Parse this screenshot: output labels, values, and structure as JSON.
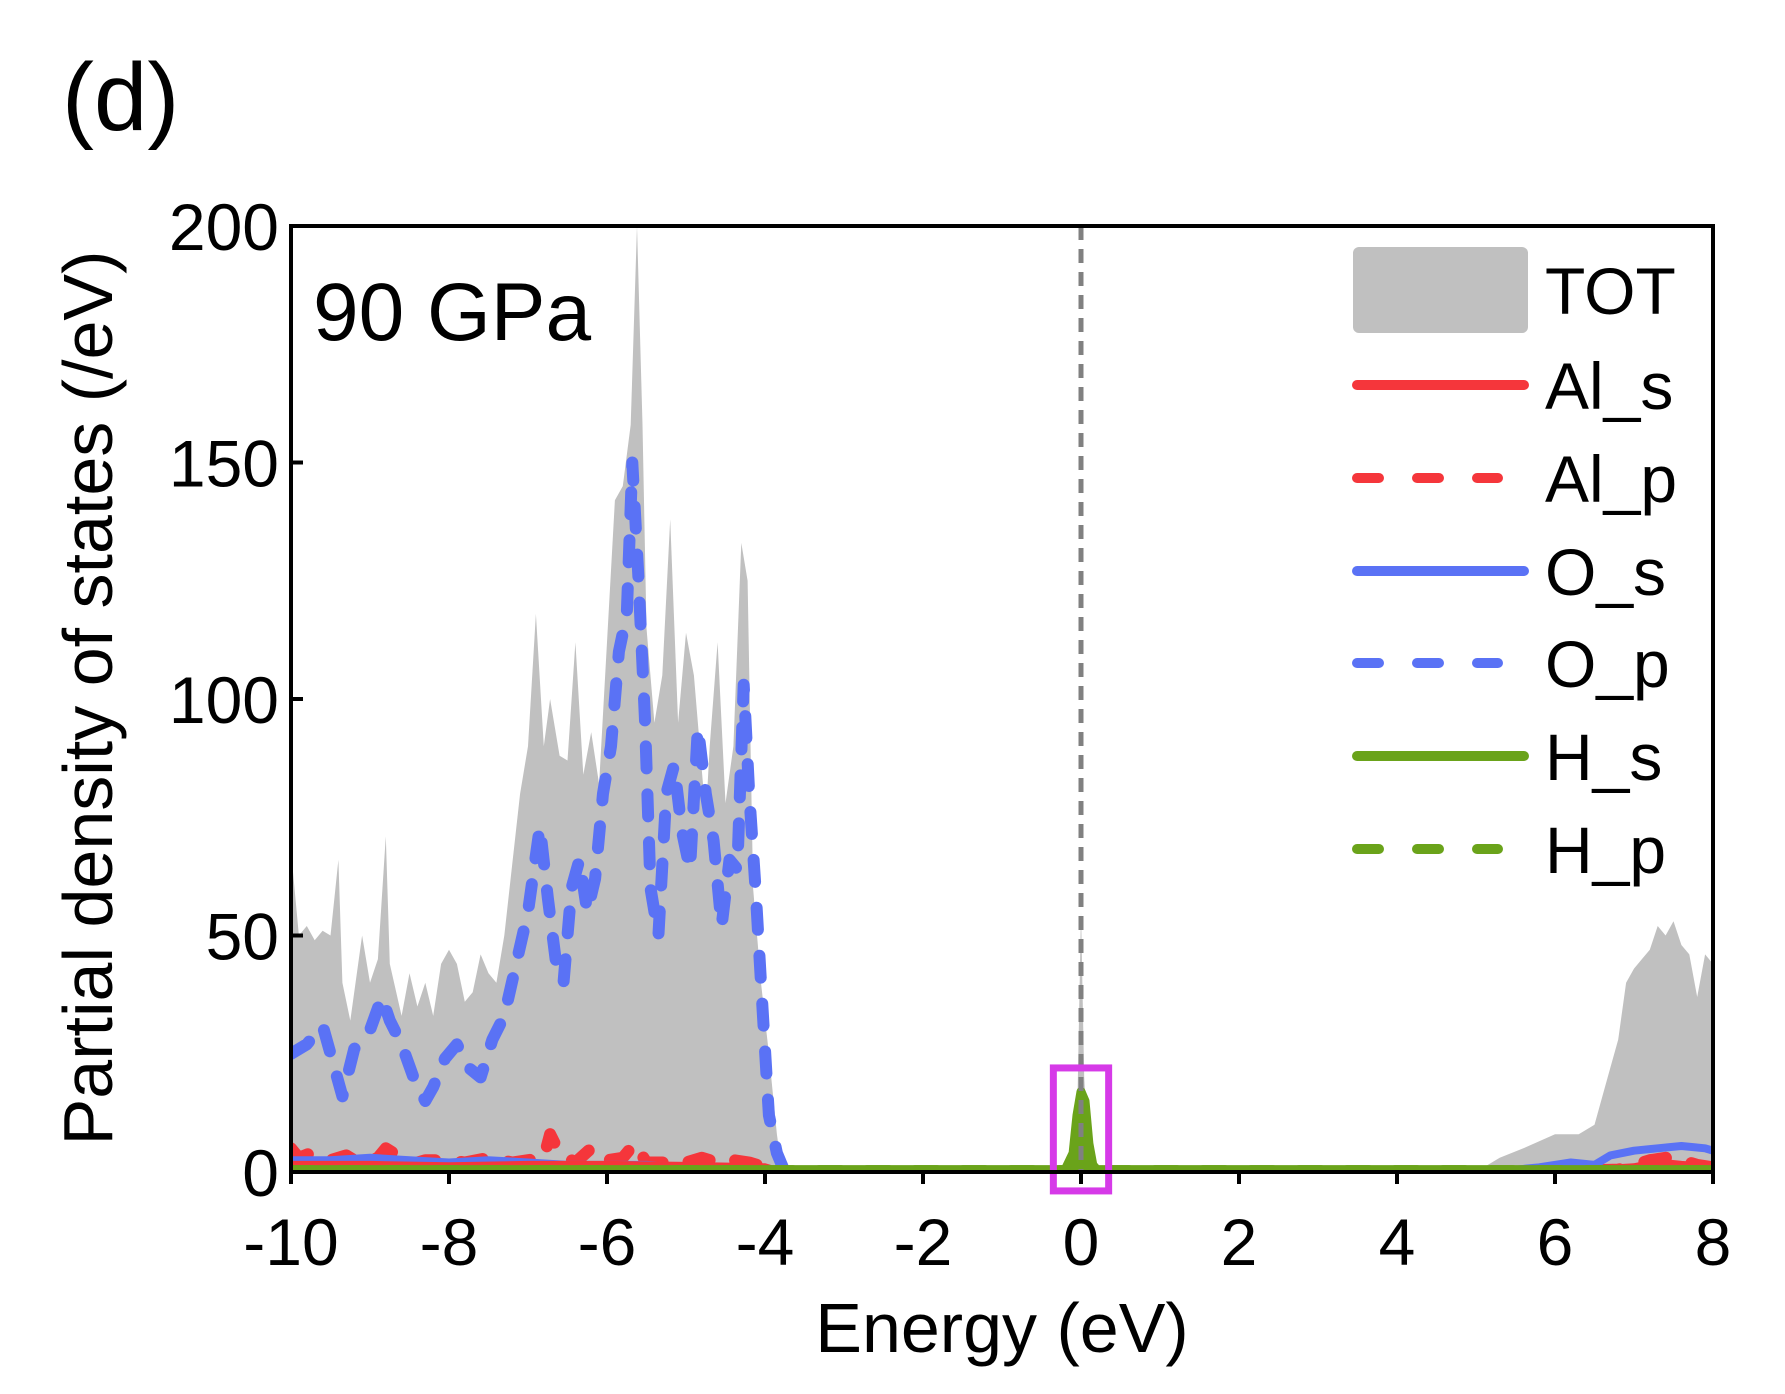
{
  "panel_label": "(d)",
  "chart_data": {
    "type": "area",
    "title": "",
    "annotation": "90 GPa",
    "xlabel": "Energy (eV)",
    "ylabel": "Partial density of states (/eV)",
    "xlim": [
      -10,
      8
    ],
    "ylim": [
      0,
      200
    ],
    "xticks": [
      -10,
      -8,
      -6,
      -4,
      -2,
      0,
      2,
      4,
      6,
      8
    ],
    "xtick_labels": [
      "-10",
      "-8",
      "-6",
      "-4",
      "-2",
      "0",
      "2",
      "4",
      "6",
      "8"
    ],
    "yticks": [
      0,
      50,
      100,
      150,
      200
    ],
    "ytick_labels": [
      "0",
      "50",
      "100",
      "150",
      "200"
    ],
    "grid": false,
    "legend_position": "top-right",
    "fermi_level": {
      "x": 0,
      "style": "dashed",
      "color": "#808080"
    },
    "highlight_box": {
      "x_range": [
        -0.35,
        0.35
      ],
      "y_range": [
        -4,
        22
      ],
      "color": "#d63ae8"
    },
    "series": [
      {
        "name": "TOT",
        "style": "fill",
        "color": "#c0c0c0",
        "x": [
          -10,
          -9.9,
          -9.8,
          -9.7,
          -9.6,
          -9.5,
          -9.4,
          -9.35,
          -9.25,
          -9.1,
          -9.0,
          -8.9,
          -8.8,
          -8.75,
          -8.6,
          -8.5,
          -8.4,
          -8.3,
          -8.2,
          -8.1,
          -8.0,
          -7.9,
          -7.8,
          -7.7,
          -7.6,
          -7.5,
          -7.4,
          -7.3,
          -7.2,
          -7.1,
          -7.0,
          -6.9,
          -6.8,
          -6.72,
          -6.6,
          -6.5,
          -6.4,
          -6.3,
          -6.2,
          -6.1,
          -6.0,
          -5.9,
          -5.8,
          -5.7,
          -5.62,
          -5.55,
          -5.5,
          -5.4,
          -5.3,
          -5.2,
          -5.1,
          -5.0,
          -4.9,
          -4.8,
          -4.75,
          -4.7,
          -4.6,
          -4.5,
          -4.4,
          -4.3,
          -4.22,
          -4.15,
          -4.05,
          -3.95,
          -3.85,
          -3.8,
          -3.7,
          -0.15,
          -0.05,
          0.0,
          0.04,
          0.1,
          0.2,
          5.0,
          5.3,
          5.6,
          6.0,
          6.3,
          6.5,
          6.6,
          6.7,
          6.8,
          6.9,
          7.0,
          7.1,
          7.2,
          7.3,
          7.4,
          7.5,
          7.6,
          7.7,
          7.8,
          7.9,
          8.0
        ],
        "y": [
          68,
          50,
          52,
          49,
          51,
          50,
          66,
          40,
          32,
          50,
          40,
          45,
          71,
          44,
          33,
          42,
          35,
          40,
          33,
          44,
          47,
          44,
          36,
          38,
          46,
          42,
          40,
          50,
          65,
          80,
          90,
          118,
          90,
          100,
          88,
          87,
          112,
          84,
          93,
          82,
          112,
          142,
          145,
          158,
          200,
          158,
          115,
          95,
          105,
          138,
          95,
          114,
          105,
          85,
          75,
          90,
          112,
          78,
          90,
          133,
          125,
          60,
          40,
          25,
          8,
          2,
          0,
          0,
          10,
          55,
          20,
          2,
          0,
          0,
          3,
          5,
          8,
          8,
          10,
          16,
          22,
          28,
          40,
          43,
          45,
          47,
          52,
          50,
          53,
          48,
          46,
          37,
          46,
          44
        ]
      },
      {
        "name": "Al_s",
        "style": "solid",
        "color": "#f5363b",
        "x": [
          -10,
          -9,
          -8,
          -7,
          -6,
          -5,
          -4,
          -3.8,
          5.5,
          6.5,
          7.0,
          7.3,
          7.6,
          8.0
        ],
        "y": [
          1.5,
          1.5,
          1.2,
          1.5,
          1.5,
          1.3,
          1.0,
          0,
          0,
          0.5,
          1.0,
          2.0,
          1.5,
          1.0
        ]
      },
      {
        "name": "Al_p",
        "style": "dashed",
        "color": "#f5363b",
        "x": [
          -10,
          -9.9,
          -9.75,
          -9.5,
          -9.3,
          -9.1,
          -8.9,
          -8.8,
          -8.7,
          -8.5,
          -8.3,
          -8.0,
          -7.8,
          -7.5,
          -7.2,
          -7.0,
          -6.8,
          -6.72,
          -6.6,
          -6.4,
          -6.2,
          -6.0,
          -5.8,
          -5.65,
          -5.5,
          -5.3,
          -5.0,
          -4.8,
          -4.6,
          -4.4,
          -4.2,
          -4.0,
          -3.8,
          5.5,
          6.8,
          7.0,
          7.2,
          7.4,
          7.6,
          7.8,
          8.0
        ],
        "y": [
          5,
          3,
          4,
          2.5,
          3.5,
          1.5,
          3,
          5,
          4,
          1.5,
          2.5,
          2.5,
          2,
          3,
          2,
          2.5,
          3,
          8,
          4,
          2,
          5,
          2.5,
          3,
          6,
          2,
          2,
          2,
          3,
          2,
          2.5,
          2,
          1,
          0,
          0,
          0.5,
          1.5,
          2.5,
          3,
          2.5,
          1.5,
          1
        ]
      },
      {
        "name": "O_s",
        "style": "solid",
        "color": "#5a72f5",
        "x": [
          -10,
          -9.5,
          -9,
          -8.5,
          -8,
          -7.5,
          -7,
          -6.5,
          -6,
          -5.5,
          -5,
          -4.5,
          -4,
          -3.8,
          5.2,
          5.8,
          6.2,
          6.5,
          6.7,
          7.0,
          7.3,
          7.6,
          7.9,
          8.0
        ],
        "y": [
          2.5,
          2.5,
          3,
          2.5,
          2,
          2.5,
          2,
          1.5,
          1.5,
          1.5,
          1,
          1,
          0.5,
          0,
          0,
          1,
          2,
          1.5,
          3.5,
          4.5,
          5,
          5.5,
          5,
          4.5
        ]
      },
      {
        "name": "O_p",
        "style": "dashed",
        "color": "#5a72f5",
        "x": [
          -10,
          -9.8,
          -9.6,
          -9.45,
          -9.35,
          -9.2,
          -9.0,
          -8.85,
          -8.75,
          -8.6,
          -8.45,
          -8.3,
          -8.2,
          -8.05,
          -7.9,
          -7.75,
          -7.6,
          -7.45,
          -7.3,
          -7.15,
          -7.0,
          -6.85,
          -6.75,
          -6.65,
          -6.55,
          -6.45,
          -6.35,
          -6.25,
          -6.15,
          -6.05,
          -5.95,
          -5.85,
          -5.75,
          -5.68,
          -5.6,
          -5.52,
          -5.45,
          -5.35,
          -5.25,
          -5.15,
          -5.05,
          -4.95,
          -4.85,
          -4.75,
          -4.65,
          -4.55,
          -4.45,
          -4.35,
          -4.27,
          -4.2,
          -4.12,
          -4.05,
          -3.95,
          -3.85,
          -3.75
        ],
        "y": [
          25,
          27,
          31,
          22,
          16,
          26,
          30,
          37,
          32,
          27,
          20,
          15,
          18,
          24,
          27,
          22,
          20,
          28,
          33,
          44,
          55,
          73,
          58,
          45,
          40,
          60,
          66,
          55,
          62,
          80,
          90,
          110,
          118,
          150,
          125,
          96,
          60,
          50,
          80,
          86,
          72,
          64,
          94,
          80,
          70,
          52,
          66,
          64,
          103,
          80,
          60,
          40,
          12,
          4,
          0
        ]
      },
      {
        "name": "H_s",
        "style": "solid",
        "color": "#6aa31a",
        "x": [
          -10,
          -0.2,
          -0.1,
          -0.05,
          0.0,
          0.05,
          0.1,
          0.15,
          0.2,
          8
        ],
        "y": [
          0.5,
          0.5,
          4,
          12,
          17,
          15,
          6,
          1.5,
          0.5,
          0.5
        ]
      },
      {
        "name": "H_p",
        "style": "dashed",
        "color": "#6aa31a",
        "x": [
          -10,
          8
        ],
        "y": [
          0.2,
          0.2
        ]
      }
    ]
  }
}
